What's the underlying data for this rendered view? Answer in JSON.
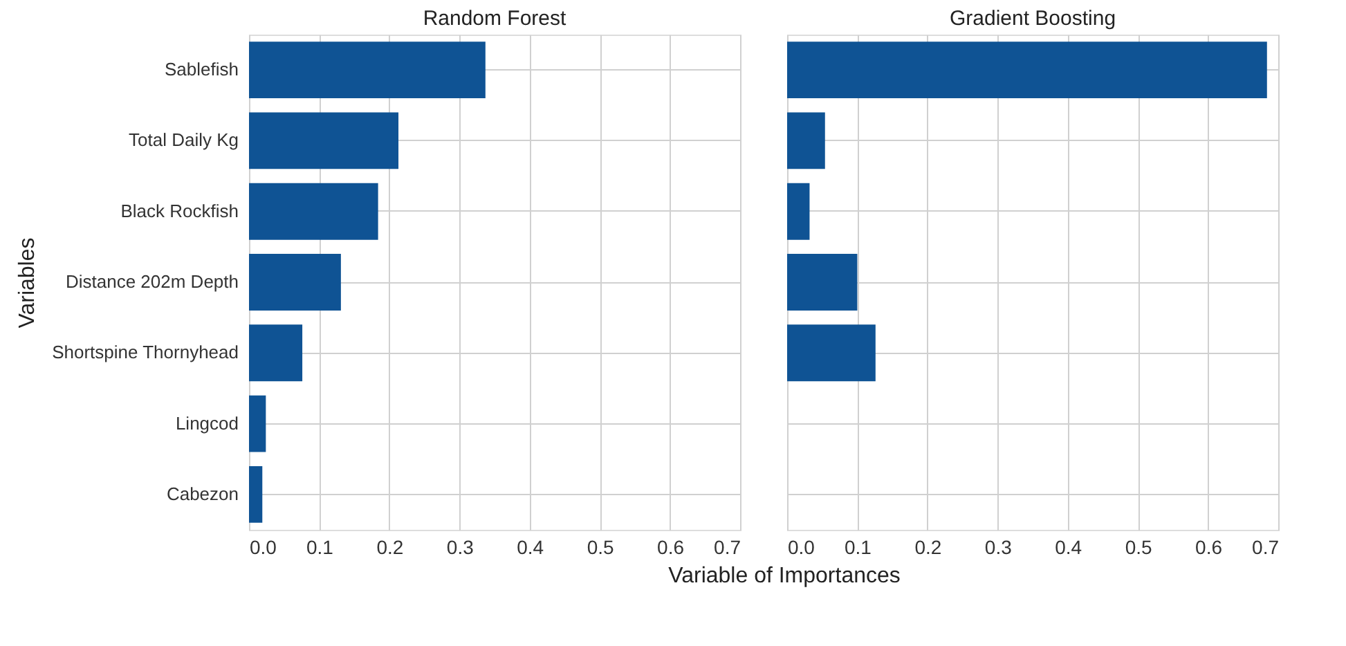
{
  "chart_data": [
    {
      "type": "bar",
      "orientation": "horizontal",
      "title": "Random Forest",
      "xlabel": "Variable of Importances",
      "ylabel": "Variables",
      "categories": [
        "Sablefish",
        "Total Daily Kg",
        "Black Rockfish",
        "Distance 202m Depth",
        "Shortspine Thornyhead",
        "Lingcod",
        "Cabezon"
      ],
      "series": [
        {
          "color": "#0f5394",
          "values": [
            0.337,
            0.213,
            0.184,
            0.131,
            0.076,
            0.024,
            0.019
          ]
        }
      ],
      "xlim": [
        0,
        0.7
      ],
      "xticks": [
        {
          "value": 0,
          "label": "0.0"
        },
        0.1,
        0.2,
        0.3,
        0.4,
        0.5,
        0.6,
        0.7
      ],
      "grid": true
    },
    {
      "type": "bar",
      "orientation": "horizontal",
      "title": "Gradient Boosting",
      "categories": [
        "Sablefish",
        "Total Daily Kg",
        "Black Rockfish",
        "Distance 202m Depth",
        "Shortspine Thornyhead",
        "Lingcod",
        "Cabezon"
      ],
      "series": [
        {
          "color": "#0f5394",
          "values": [
            0.684,
            0.054,
            0.032,
            0.1,
            0.126,
            0.0,
            0.0
          ]
        }
      ],
      "xlim": [
        0,
        0.7
      ],
      "xticks": [
        {
          "value": 0,
          "label": "0.0"
        },
        0.1,
        0.2,
        0.3,
        0.4,
        0.5,
        0.6,
        0.7
      ],
      "grid": true,
      "tick_labels": "x"
    }
  ]
}
